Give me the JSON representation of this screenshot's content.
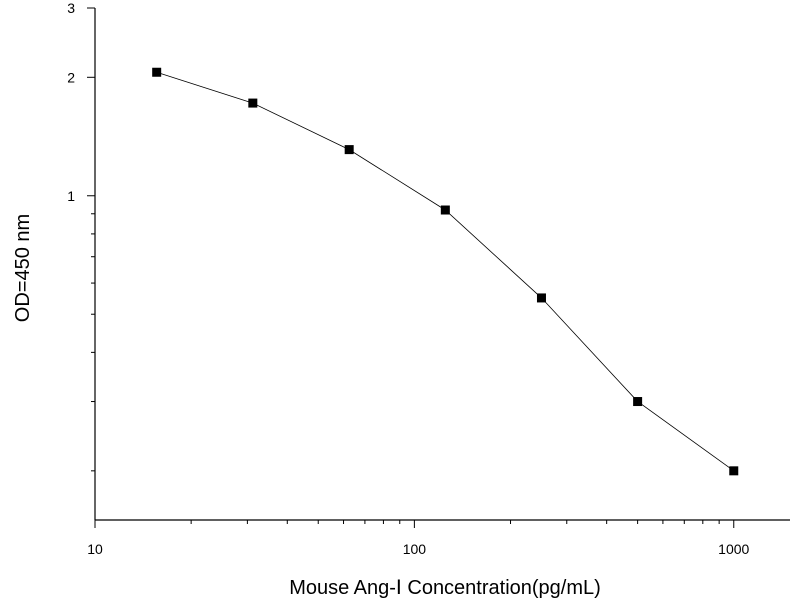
{
  "chart_data": {
    "type": "scatter",
    "title": "",
    "xlabel": "Mouse  Ang-Ⅰ Concentration(pg/mL)",
    "ylabel": "OD=450 nm",
    "xscale": "log",
    "yscale": "log",
    "xlim": [
      10,
      1500
    ],
    "ylim": [
      0.15,
      3
    ],
    "x_ticks": [
      10,
      100,
      1000
    ],
    "y_ticks": [
      1,
      2,
      3
    ],
    "grid": false,
    "legend": "none",
    "marker": "square",
    "line": "connected",
    "series": [
      {
        "x": [
          15.6,
          31.2,
          62.5,
          125,
          250,
          500,
          1000
        ],
        "y": [
          2.06,
          1.72,
          1.31,
          0.92,
          0.55,
          0.3,
          0.2
        ]
      }
    ]
  }
}
